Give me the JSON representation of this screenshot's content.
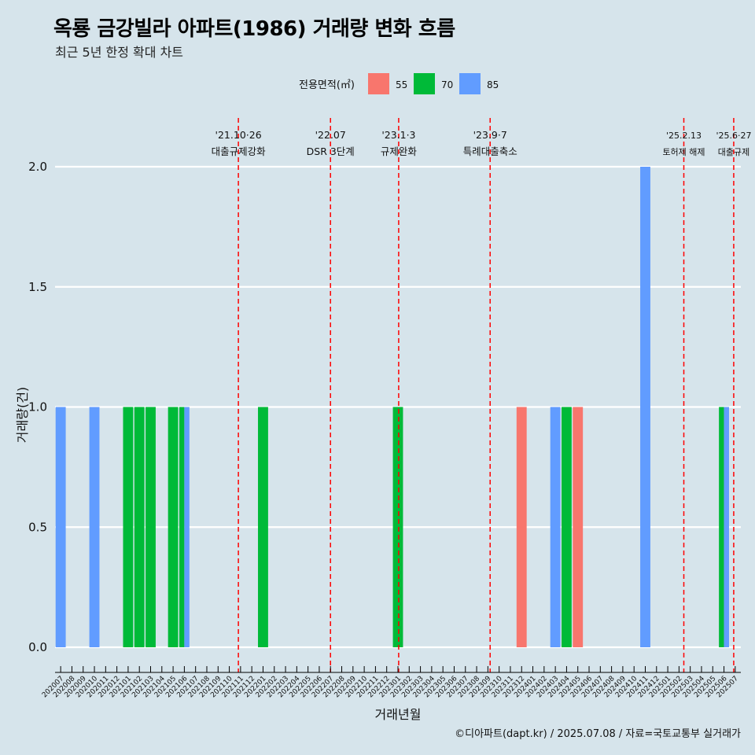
{
  "title": "옥룡 금강빌라 아파트(1986) 거래량 변화 흐름",
  "subtitle": "최근 5년 한정 확대 차트",
  "caption": "©디아파트(dapt.kr) / 2025.07.08 / 자료=국토교통부 실거래가",
  "colors": {
    "55": "#f8766d",
    "70": "#00ba38",
    "85": "#619cff",
    "event_line": "#ff0000",
    "background": "#d6e4eb",
    "grid": "#ffffff"
  },
  "chart_data": {
    "type": "bar",
    "xlabel": "거래년월",
    "ylabel": "거래량(건)",
    "ylim": [
      0,
      2
    ],
    "yticks": [
      "0.0",
      "0.5",
      "1.0",
      "1.5",
      "2.0"
    ],
    "legend": {
      "title": "전용면적(㎡)",
      "placement": "top",
      "entries": [
        "55",
        "70",
        "85"
      ]
    },
    "categories": [
      "202007",
      "202008",
      "202009",
      "202010",
      "202011",
      "202012",
      "202101",
      "202102",
      "202103",
      "202104",
      "202105",
      "202106",
      "202107",
      "202108",
      "202109",
      "202110",
      "202111",
      "202112",
      "202201",
      "202202",
      "202203",
      "202204",
      "202205",
      "202206",
      "202207",
      "202208",
      "202209",
      "202210",
      "202211",
      "202212",
      "202301",
      "202302",
      "202303",
      "202304",
      "202305",
      "202306",
      "202307",
      "202308",
      "202309",
      "202310",
      "202311",
      "202312",
      "202401",
      "202402",
      "202403",
      "202404",
      "202405",
      "202406",
      "202407",
      "202408",
      "202409",
      "202410",
      "202411",
      "202412",
      "202501",
      "202502",
      "202503",
      "202504",
      "202505",
      "202506",
      "202507"
    ],
    "series": [
      {
        "name": "55",
        "points": [
          {
            "x": "202312",
            "y": 1
          },
          {
            "x": "202405",
            "y": 1
          }
        ]
      },
      {
        "name": "70",
        "points": [
          {
            "x": "202101",
            "y": 1
          },
          {
            "x": "202102",
            "y": 1
          },
          {
            "x": "202103",
            "y": 1
          },
          {
            "x": "202105",
            "y": 1
          },
          {
            "x": "202106",
            "y": 1
          },
          {
            "x": "202201",
            "y": 1
          },
          {
            "x": "202301",
            "y": 1
          },
          {
            "x": "202404",
            "y": 1
          },
          {
            "x": "202506",
            "y": 1
          }
        ]
      },
      {
        "name": "85",
        "points": [
          {
            "x": "202007",
            "y": 1
          },
          {
            "x": "202010",
            "y": 1
          },
          {
            "x": "202106",
            "y": 1
          },
          {
            "x": "202403",
            "y": 1
          },
          {
            "x": "202411",
            "y": 2
          },
          {
            "x": "202506",
            "y": 1
          }
        ]
      }
    ],
    "events": [
      {
        "date": "2021-10-26",
        "label_date": "'21.10·26",
        "label_text": "대출규제강화"
      },
      {
        "date": "2022-07-01",
        "label_date": "'22.07",
        "label_text": "DSR 3단계"
      },
      {
        "date": "2023-01-03",
        "label_date": "'23.1·3",
        "label_text": "규제완화"
      },
      {
        "date": "2023-09-07",
        "label_date": "'23.9·7",
        "label_text": "특례대출축소"
      },
      {
        "date": "2025-02-13",
        "label_date": "'25.2.13",
        "label_text": "토허제 해제"
      },
      {
        "date": "2025-06-27",
        "label_date": "'25.6·27",
        "label_text": "대출규제"
      }
    ]
  }
}
